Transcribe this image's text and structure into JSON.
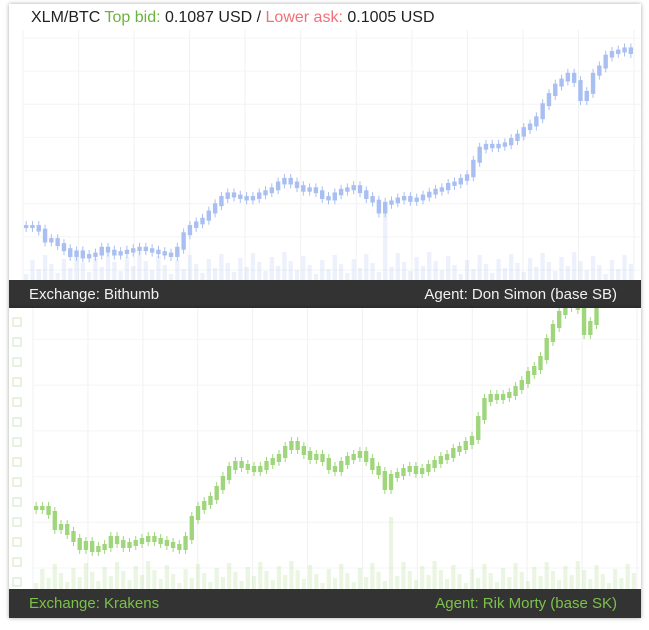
{
  "ticker": {
    "pair": "XLM/BTC",
    "top_bid_label": "Top bid:",
    "top_bid_value": "0.1087 USD",
    "separator": "/",
    "lower_ask_label": "Lower ask:",
    "lower_ask_value": "0.1005 USD"
  },
  "panels": [
    {
      "exchange_label": "Exchange: Bithumb",
      "agent_label": "Agent: Don Simon (base SB)",
      "accent": "#a9bff2"
    },
    {
      "exchange_label": "Exchange: Krakens",
      "agent_label": "Agent: Rik Morty (base SK)",
      "accent": "#9fd67b"
    }
  ],
  "colors": {
    "bid": "#6cb33e",
    "ask": "#f07178",
    "footer_bg": "#333333",
    "footer_text_green": "#7cc24a"
  },
  "chart_data": {
    "type": "candlestick",
    "series": [
      {
        "values": [
          210,
          210,
          205,
          190,
          192,
          185,
          178,
          170,
          175,
          168,
          170,
          172,
          180,
          176,
          172,
          174,
          176,
          178,
          180,
          178,
          176,
          174,
          172,
          170,
          180,
          200,
          210,
          215,
          220,
          230,
          240,
          250,
          255,
          252,
          250,
          248,
          250,
          255,
          258,
          262,
          270,
          275,
          270,
          265,
          260,
          262,
          258,
          250,
          248,
          255,
          260,
          262,
          265,
          258,
          250,
          245,
          230,
          242,
          244,
          248,
          250,
          246,
          248,
          252,
          256,
          260,
          262,
          268,
          270,
          275,
          280,
          300,
          318,
          322,
          320,
          322,
          324,
          330,
          336,
          345,
          350,
          360,
          378,
          392,
          405,
          412,
          420,
          410,
          385,
          395,
          420,
          430,
          445,
          450,
          452,
          455,
          450
        ]
      }
    ]
  }
}
